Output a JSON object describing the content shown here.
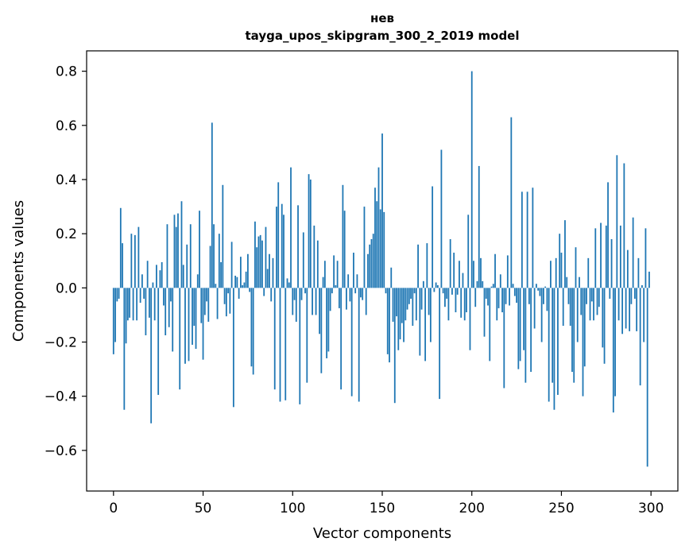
{
  "chart_data": {
    "type": "bar",
    "title": "нев",
    "subtitle": "tayga_upos_skipgram_300_2_2019 model",
    "xlabel": "Vector components",
    "ylabel": "Components values",
    "xlim": [
      -15,
      315
    ],
    "ylim": [
      -0.75,
      0.8752
    ],
    "xticks": [
      0,
      50,
      100,
      150,
      200,
      250,
      300
    ],
    "yticks": [
      -0.6,
      -0.4,
      -0.2,
      0.0,
      0.2,
      0.4,
      0.6,
      0.8
    ],
    "ytick_labels": [
      "−0.6",
      "−0.4",
      "−0.2",
      "0.0",
      "0.2",
      "0.4",
      "0.6",
      "0.8"
    ],
    "grid": false,
    "color": "#1f77b4",
    "values": [
      -0.245,
      -0.2,
      -0.05,
      -0.04,
      0.295,
      0.165,
      -0.45,
      -0.205,
      -0.12,
      -0.11,
      0.2,
      -0.12,
      0.195,
      -0.12,
      0.225,
      -0.055,
      0.05,
      -0.04,
      -0.175,
      0.1,
      -0.11,
      -0.5,
      0.02,
      -0.12,
      0.085,
      -0.395,
      0.065,
      0.095,
      -0.065,
      -0.175,
      0.235,
      -0.145,
      -0.05,
      -0.235,
      0.27,
      0.225,
      0.275,
      -0.375,
      0.32,
      0.085,
      -0.28,
      0.16,
      -0.27,
      0.235,
      -0.21,
      -0.14,
      -0.225,
      0.05,
      0.285,
      -0.13,
      -0.265,
      -0.1,
      -0.05,
      -0.125,
      0.155,
      0.61,
      0.235,
      0.015,
      -0.115,
      0.2,
      0.095,
      0.38,
      -0.06,
      -0.105,
      -0.02,
      -0.095,
      0.17,
      -0.44,
      0.045,
      0.04,
      -0.04,
      0.115,
      0.01,
      0.02,
      0.06,
      0.125,
      -0.015,
      -0.29,
      -0.32,
      0.245,
      0.15,
      0.19,
      0.195,
      0.175,
      -0.03,
      0.225,
      0.07,
      0.125,
      -0.05,
      0.11,
      -0.375,
      0.3,
      0.39,
      -0.42,
      0.31,
      0.27,
      -0.415,
      0.035,
      0.02,
      0.445,
      -0.1,
      -0.045,
      -0.125,
      0.305,
      -0.43,
      -0.045,
      0.205,
      -0.02,
      -0.35,
      0.42,
      0.4,
      -0.1,
      0.23,
      -0.1,
      0.175,
      -0.17,
      -0.315,
      0.04,
      0.1,
      -0.26,
      -0.235,
      -0.085,
      -0.02,
      0.12,
      0.01,
      0.1,
      -0.075,
      -0.375,
      0.38,
      0.285,
      -0.08,
      0.05,
      -0.05,
      -0.4,
      0.13,
      -0.02,
      0.05,
      -0.42,
      -0.035,
      -0.045,
      0.3,
      -0.1,
      0.125,
      0.16,
      0.18,
      0.2,
      0.37,
      0.32,
      0.445,
      0.29,
      0.57,
      0.28,
      -0.02,
      -0.245,
      -0.275,
      0.075,
      -0.125,
      -0.425,
      -0.105,
      -0.23,
      -0.19,
      -0.13,
      -0.2,
      -0.12,
      -0.08,
      -0.06,
      -0.04,
      -0.14,
      -0.02,
      -0.12,
      0.16,
      -0.25,
      -0.08,
      0.025,
      -0.27,
      0.165,
      -0.1,
      -0.2,
      0.375,
      -0.015,
      0.02,
      0.01,
      -0.41,
      0.51,
      -0.02,
      -0.07,
      -0.04,
      -0.12,
      0.18,
      -0.025,
      0.13,
      -0.09,
      -0.025,
      0.1,
      -0.11,
      0.055,
      -0.12,
      -0.09,
      0.27,
      -0.23,
      0.8,
      0.1,
      -0.07,
      0.025,
      0.45,
      0.11,
      0.025,
      -0.18,
      -0.04,
      -0.065,
      -0.27,
      0.005,
      0.015,
      0.125,
      -0.12,
      -0.075,
      0.05,
      -0.09,
      -0.37,
      -0.06,
      0.12,
      -0.065,
      0.63,
      0.015,
      -0.03,
      -0.055,
      -0.3,
      -0.27,
      0.355,
      -0.23,
      -0.35,
      0.355,
      -0.06,
      -0.31,
      0.37,
      -0.15,
      0.015,
      -0.01,
      -0.03,
      -0.2,
      -0.06,
      0.005,
      -0.085,
      -0.42,
      0.1,
      -0.35,
      -0.45,
      0.11,
      -0.395,
      0.2,
      0.13,
      -0.14,
      0.25,
      0.04,
      -0.06,
      -0.14,
      -0.31,
      -0.35,
      0.15,
      -0.2,
      0.04,
      -0.1,
      -0.4,
      -0.29,
      -0.06,
      0.11,
      -0.12,
      -0.05,
      -0.12,
      0.22,
      -0.1,
      -0.07,
      0.24,
      -0.22,
      -0.28,
      0.23,
      0.39,
      -0.04,
      0.18,
      -0.46,
      -0.4,
      0.49,
      -0.12,
      0.23,
      -0.17,
      0.46,
      -0.15,
      0.14,
      -0.16,
      -0.06,
      0.26,
      -0.04,
      -0.16,
      0.11,
      -0.36,
      0.01,
      -0.2,
      0.22,
      -0.66,
      0.06
    ]
  }
}
